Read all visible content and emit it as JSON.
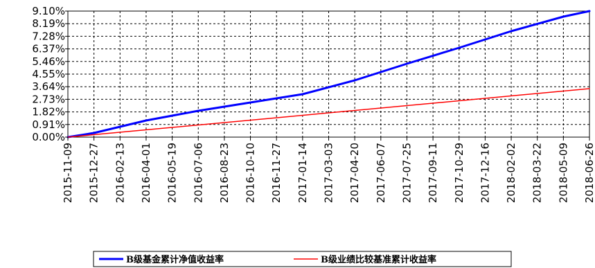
{
  "chart_data": {
    "type": "line",
    "title": "",
    "xlabel": "",
    "ylabel": "",
    "ylim": [
      0,
      9.1
    ],
    "y_ticks": [
      "0.00%",
      "0.91%",
      "1.82%",
      "2.73%",
      "3.64%",
      "4.55%",
      "5.46%",
      "6.37%",
      "7.28%",
      "8.19%",
      "9.10%"
    ],
    "x_ticks": [
      "2015-11-09",
      "2015-12-27",
      "2016-02-13",
      "2016-04-01",
      "2016-05-19",
      "2016-07-06",
      "2016-08-23",
      "2016-10-10",
      "2016-11-27",
      "2017-01-14",
      "2017-03-03",
      "2017-04-20",
      "2017-06-07",
      "2017-07-25",
      "2017-09-11",
      "2017-10-29",
      "2017-12-16",
      "2018-02-02",
      "2018-03-22",
      "2018-05-09",
      "2018-06-26"
    ],
    "grid": true,
    "legend_position": "bottom",
    "series": [
      {
        "name": "B级基金累计净值收益率",
        "color": "#0000ff",
        "x": [
          "2015-11-09",
          "2015-12-27",
          "2016-04-01",
          "2016-07-06",
          "2016-10-10",
          "2017-01-14",
          "2017-04-20",
          "2017-07-25",
          "2017-10-29",
          "2018-02-02",
          "2018-05-09",
          "2018-06-26"
        ],
        "y": [
          0.0,
          0.3,
          1.2,
          1.9,
          2.5,
          3.1,
          4.1,
          5.3,
          6.45,
          7.65,
          8.7,
          9.1
        ]
      },
      {
        "name": "B级业绩比较基准累计收益率",
        "color": "#ff0000",
        "x": [
          "2015-11-09",
          "2018-06-26"
        ],
        "y": [
          0.0,
          3.5
        ]
      }
    ]
  }
}
